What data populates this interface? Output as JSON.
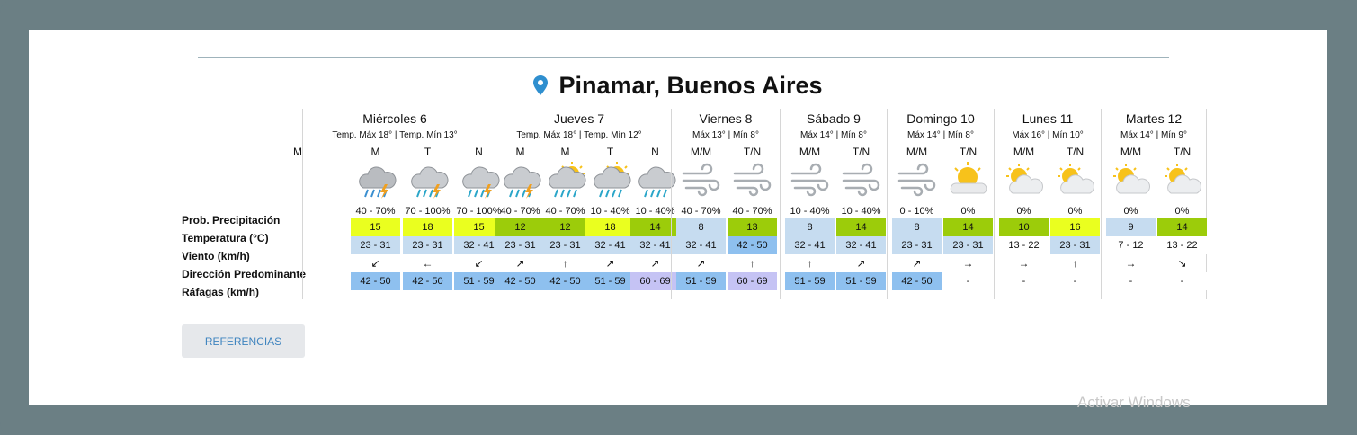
{
  "title": "Pinamar, Buenos Aires",
  "row_labels": [
    "Prob. Precipitación",
    "Temperatura (°C)",
    "Viento (km/h)",
    "Dirección Predominante",
    "Ráfagas (km/h)"
  ],
  "reference_button": "REFERENCIAS",
  "watermark": "Activar Windows",
  "colors": {
    "yellow": "#eaff1f",
    "green": "#9ccc0a",
    "lightblue": "#c6dcf0",
    "midblue": "#8ec0ef",
    "purple": "#c5c3f4",
    "blank": "#ffffff"
  },
  "days": [
    {
      "name": "Miércoles 6",
      "sub": "Temp. Máx 18° | Temp. Mín 13°",
      "lead": "M",
      "slots": [
        {
          "period": "M",
          "icon": "storm-cloud-icon",
          "prob": "40 - 70%",
          "temp": "15",
          "temp_color": "yellow",
          "wind": "23 - 31",
          "wind_color": "lightblue",
          "dir": "↙",
          "gust": "42 - 50",
          "gust_color": "midblue"
        },
        {
          "period": "T",
          "icon": "rain-storm-icon",
          "prob": "70 - 100%",
          "temp": "18",
          "temp_color": "yellow",
          "wind": "23 - 31",
          "wind_color": "lightblue",
          "dir": "←",
          "gust": "42 - 50",
          "gust_color": "midblue"
        },
        {
          "period": "N",
          "icon": "rain-storm-icon",
          "prob": "70 - 100%",
          "temp": "15",
          "temp_color": "yellow",
          "wind": "32 - 41",
          "wind_color": "lightblue",
          "dir": "↙",
          "gust": "51 - 59",
          "gust_color": "midblue"
        }
      ]
    },
    {
      "name": "Jueves 7",
      "sub": "Temp. Máx 18° | Temp. Mín 12°",
      "slots": [
        {
          "period": "M",
          "icon": "rain-storm-icon",
          "prob": "40 - 70%",
          "temp": "12",
          "temp_color": "green",
          "wind": "23 - 31",
          "wind_color": "lightblue",
          "dir": "↗",
          "gust": "42 - 50",
          "gust_color": "midblue"
        },
        {
          "period": "M",
          "icon": "sun-rain-icon",
          "prob": "40 - 70%",
          "temp": "12",
          "temp_color": "green",
          "wind": "23 - 31",
          "wind_color": "lightblue",
          "dir": "↑",
          "gust": "42 - 50",
          "gust_color": "midblue"
        },
        {
          "period": "T",
          "icon": "sun-rain-icon",
          "prob": "10 - 40%",
          "temp": "18",
          "temp_color": "yellow",
          "wind": "32 - 41",
          "wind_color": "lightblue",
          "dir": "↗",
          "gust": "51 - 59",
          "gust_color": "midblue"
        },
        {
          "period": "N",
          "icon": "rain-cloud-icon",
          "prob": "10 - 40%",
          "temp": "14",
          "temp_color": "green",
          "wind": "32 - 41",
          "wind_color": "lightblue",
          "dir": "↗",
          "gust": "60 - 69",
          "gust_color": "purple"
        }
      ]
    },
    {
      "name": "Viernes 8",
      "sub": "Máx 13° | Mín 8°",
      "slots": [
        {
          "period": "M/M",
          "icon": "wind-icon",
          "prob": "40 - 70%",
          "temp": "8",
          "temp_color": "lightblue",
          "wind": "32 - 41",
          "wind_color": "lightblue",
          "dir": "↗",
          "gust": "51 - 59",
          "gust_color": "midblue"
        },
        {
          "period": "T/N",
          "icon": "wind-icon",
          "prob": "40 - 70%",
          "temp": "13",
          "temp_color": "green",
          "wind": "42 - 50",
          "wind_color": "midblue",
          "dir": "↑",
          "gust": "60 - 69",
          "gust_color": "purple"
        }
      ]
    },
    {
      "name": "Sábado 9",
      "sub": "Máx 14° | Mín 8°",
      "slots": [
        {
          "period": "M/M",
          "icon": "wind-icon",
          "prob": "10 - 40%",
          "temp": "8",
          "temp_color": "lightblue",
          "wind": "32 - 41",
          "wind_color": "lightblue",
          "dir": "↑",
          "gust": "51 - 59",
          "gust_color": "midblue"
        },
        {
          "period": "T/N",
          "icon": "wind-icon",
          "prob": "10 - 40%",
          "temp": "14",
          "temp_color": "green",
          "wind": "32 - 41",
          "wind_color": "lightblue",
          "dir": "↗",
          "gust": "51 - 59",
          "gust_color": "midblue"
        }
      ]
    },
    {
      "name": "Domingo 10",
      "sub": "Máx 14° | Mín 8°",
      "slots": [
        {
          "period": "M/M",
          "icon": "wind-icon",
          "prob": "0 - 10%",
          "temp": "8",
          "temp_color": "lightblue",
          "wind": "23 - 31",
          "wind_color": "lightblue",
          "dir": "↗",
          "gust": "42 - 50",
          "gust_color": "midblue"
        },
        {
          "period": "T/N",
          "icon": "partly-sunny-icon",
          "prob": "0%",
          "temp": "14",
          "temp_color": "green",
          "wind": "23 - 31",
          "wind_color": "lightblue",
          "dir": "→",
          "gust": "-",
          "gust_color": "blank"
        }
      ]
    },
    {
      "name": "Lunes 11",
      "sub": "Máx 16° | Mín 10°",
      "slots": [
        {
          "period": "M/M",
          "icon": "sun-cloud-icon",
          "prob": "0%",
          "temp": "10",
          "temp_color": "green",
          "wind": "13 - 22",
          "wind_color": "blank",
          "dir": "→",
          "gust": "-",
          "gust_color": "blank"
        },
        {
          "period": "T/N",
          "icon": "sun-cloud-icon",
          "prob": "0%",
          "temp": "16",
          "temp_color": "yellow",
          "wind": "23 - 31",
          "wind_color": "lightblue",
          "dir": "↑",
          "gust": "-",
          "gust_color": "blank"
        }
      ]
    },
    {
      "name": "Martes 12",
      "sub": "Máx 14° | Mín 9°",
      "slots": [
        {
          "period": "M/M",
          "icon": "sun-cloud-icon",
          "prob": "0%",
          "temp": "9",
          "temp_color": "lightblue",
          "wind": "7 - 12",
          "wind_color": "blank",
          "dir": "→",
          "gust": "-",
          "gust_color": "blank"
        },
        {
          "period": "T/N",
          "icon": "sun-cloud-icon",
          "prob": "0%",
          "temp": "14",
          "temp_color": "green",
          "wind": "13 - 22",
          "wind_color": "blank",
          "dir": "↘",
          "gust": "-",
          "gust_color": "blank"
        }
      ]
    }
  ]
}
